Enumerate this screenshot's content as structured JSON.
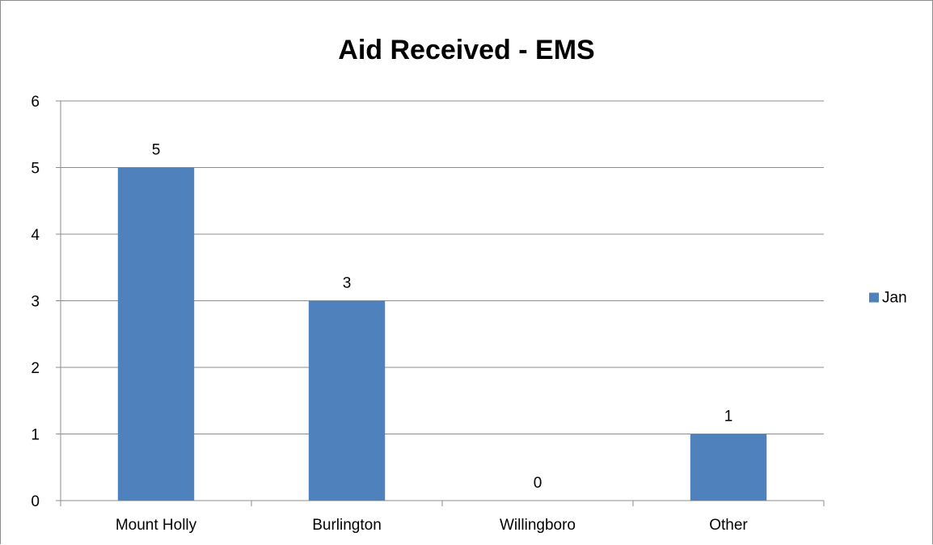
{
  "chart_data": {
    "type": "bar",
    "title": "Aid Received - EMS",
    "categories": [
      "Mount Holly",
      "Burlington",
      "Willingboro",
      "Other"
    ],
    "series": [
      {
        "name": "Jan",
        "values": [
          5,
          3,
          0,
          1
        ],
        "color": "#4f81bd"
      }
    ],
    "ylim": [
      0,
      6
    ],
    "yticks": [
      "0",
      "1",
      "2",
      "3",
      "4",
      "5",
      "6"
    ],
    "data_labels": [
      "5",
      "3",
      "0",
      "1"
    ],
    "grid": true,
    "legend": "right"
  }
}
